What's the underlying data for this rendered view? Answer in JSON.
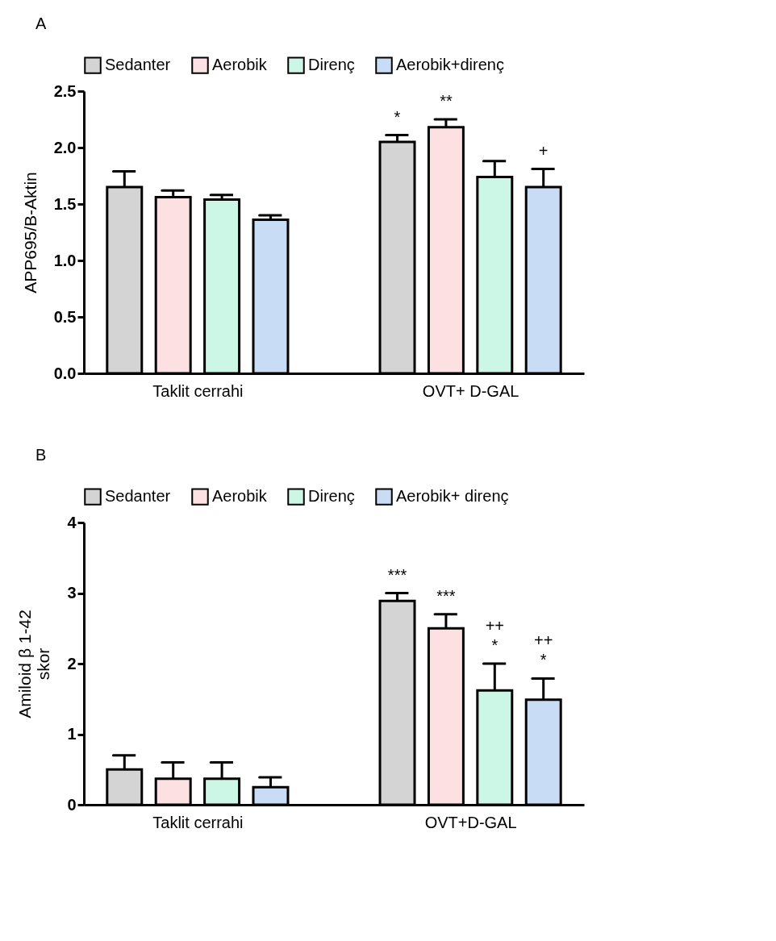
{
  "chart_data": [
    {
      "type": "bar",
      "title": "A",
      "ylabel": "APP695/B-Aktin",
      "categories": [
        "Taklit cerrahi",
        "OVT+ D-GAL"
      ],
      "ylim": [
        0,
        2.5
      ],
      "yticks": [
        {
          "value": 0,
          "label": "0.0"
        },
        0.5,
        {
          "value": 1,
          "label": "1.0"
        },
        1.5,
        {
          "value": 2,
          "label": "2.0"
        },
        2.5
      ],
      "legend": "top",
      "series": [
        {
          "name": "Sedanter",
          "color": "#d4d4d4",
          "values": [
            1.65,
            2.05
          ],
          "errors": [
            [
              1.65,
              1.79
            ],
            [
              2.05,
              2.11
            ]
          ],
          "value_labels": [
            null,
            "*"
          ]
        },
        {
          "name": "Aerobik",
          "color": "#fde0e2",
          "values": [
            1.56,
            2.18
          ],
          "errors": [
            [
              1.56,
              1.62
            ],
            [
              2.18,
              2.25
            ]
          ],
          "value_labels": [
            null,
            "**"
          ]
        },
        {
          "name": "Direnç",
          "color": "#ccf6e6",
          "values": [
            1.54,
            1.74
          ],
          "errors": [
            [
              1.54,
              1.58
            ],
            [
              1.74,
              1.88
            ]
          ],
          "value_labels": [
            null,
            null
          ]
        },
        {
          "name": "Aerobik+direnç",
          "color": "#c8dcf6",
          "values": [
            1.36,
            1.65
          ],
          "errors": [
            [
              1.36,
              1.4
            ],
            [
              1.65,
              1.81
            ]
          ],
          "value_labels": [
            null,
            "+"
          ]
        }
      ]
    },
    {
      "type": "bar",
      "title": "B",
      "ylabel": "Amiloid β 1-42\nskor",
      "categories": [
        "Taklit cerrahi",
        "OVT+D-GAL"
      ],
      "ylim": [
        0,
        4
      ],
      "yticks": [
        {
          "value": 0,
          "label": "0"
        },
        {
          "value": 1,
          "label": "1"
        },
        {
          "value": 2,
          "label": "2"
        },
        {
          "value": 3,
          "label": "3"
        },
        {
          "value": 4,
          "label": "4"
        }
      ],
      "legend": "top",
      "series": [
        {
          "name": "Sedanter",
          "color": "#d4d4d4",
          "values": [
            0.5,
            2.89
          ],
          "errors": [
            [
              0.5,
              0.7
            ],
            [
              2.89,
              3.0
            ]
          ],
          "value_labels": [
            null,
            "***"
          ]
        },
        {
          "name": "Aerobik",
          "color": "#fde0e2",
          "values": [
            0.37,
            2.5
          ],
          "errors": [
            [
              0.37,
              0.6
            ],
            [
              2.5,
              2.7
            ]
          ],
          "value_labels": [
            null,
            "***"
          ]
        },
        {
          "name": "Direnç",
          "color": "#ccf6e6",
          "values": [
            0.37,
            1.62
          ],
          "errors": [
            [
              0.37,
              0.6
            ],
            [
              1.62,
              2.0
            ]
          ],
          "value_labels": [
            null,
            "++\n*"
          ]
        },
        {
          "name": "Aerobik+ direnç",
          "color": "#c8dcf6",
          "values": [
            0.25,
            1.49
          ],
          "errors": [
            [
              0.25,
              0.39
            ],
            [
              1.49,
              1.79
            ]
          ],
          "value_labels": [
            null,
            "++\n*"
          ]
        }
      ]
    }
  ]
}
